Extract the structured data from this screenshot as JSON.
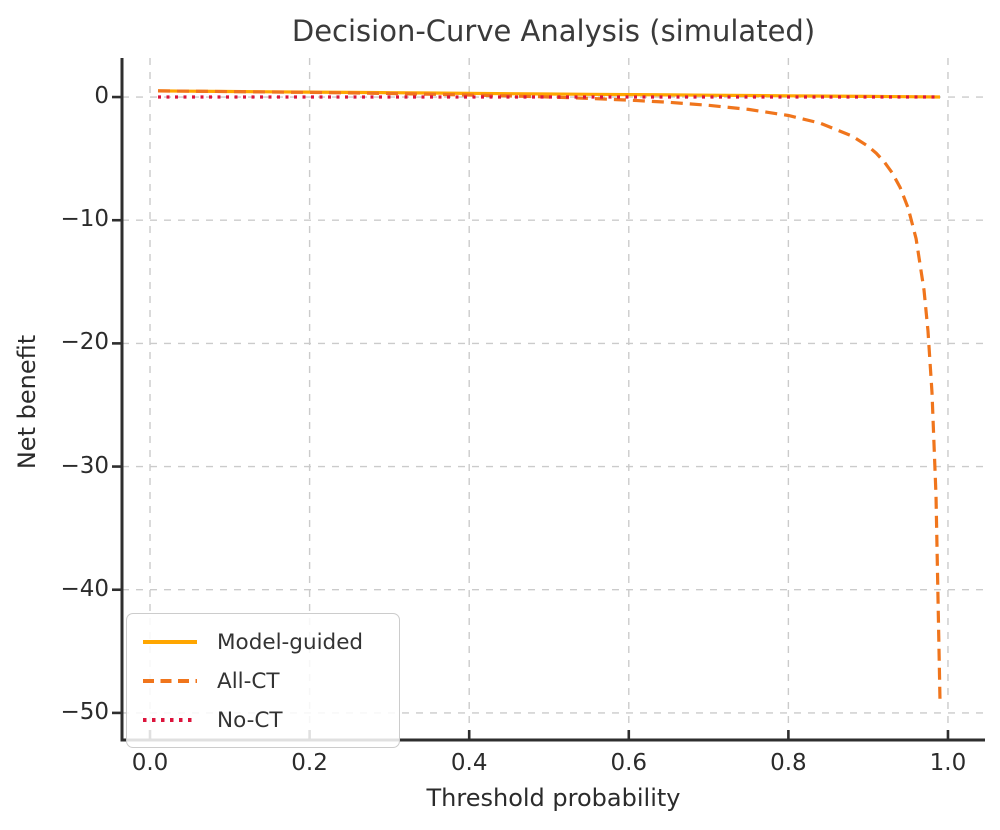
{
  "chart_data": {
    "type": "line",
    "title": "Decision-Curve Analysis (simulated)",
    "xlabel": "Threshold probability",
    "ylabel": "Net benefit",
    "xlim": [
      -0.0351,
      1.0464
    ],
    "ylim": [
      -52.2,
      3.17
    ],
    "xticks": [
      0.0,
      0.2,
      0.4,
      0.6,
      0.8,
      1.0
    ],
    "xtick_labels": [
      "0.0",
      "0.2",
      "0.4",
      "0.6",
      "0.8",
      "1.0"
    ],
    "yticks": [
      0,
      -10,
      -20,
      -30,
      -40,
      -50
    ],
    "ytick_labels": [
      "0",
      "−10",
      "−20",
      "−30",
      "−40",
      "−50"
    ],
    "grid": true,
    "grid_color": "#cbcbcb",
    "legend_position": "lower left",
    "series": [
      {
        "name": "Model-guided",
        "color": "#FFA600",
        "style": "solid",
        "x": [
          0.01,
          0.05,
          0.1,
          0.15,
          0.2,
          0.25,
          0.3,
          0.35,
          0.4,
          0.45,
          0.5,
          0.55,
          0.6,
          0.65,
          0.7,
          0.75,
          0.8,
          0.85,
          0.9,
          0.95,
          0.99
        ],
        "y": [
          0.495,
          0.475,
          0.45,
          0.425,
          0.4,
          0.375,
          0.35,
          0.325,
          0.3,
          0.275,
          0.25,
          0.225,
          0.2,
          0.175,
          0.15,
          0.125,
          0.1,
          0.075,
          0.05,
          0.025,
          0.005
        ]
      },
      {
        "name": "All-CT",
        "color": "#F0751C",
        "style": "dashed",
        "x": [
          0.01,
          0.05,
          0.1,
          0.15,
          0.2,
          0.25,
          0.3,
          0.35,
          0.4,
          0.45,
          0.5,
          0.55,
          0.6,
          0.65,
          0.7,
          0.75,
          0.8,
          0.84,
          0.88,
          0.9,
          0.91,
          0.92,
          0.93,
          0.94,
          0.95,
          0.96,
          0.97,
          0.975,
          0.98,
          0.985,
          0.99
        ],
        "y": [
          0.495,
          0.474,
          0.444,
          0.412,
          0.375,
          0.333,
          0.286,
          0.231,
          0.167,
          0.091,
          0.0,
          -0.111,
          -0.25,
          -0.429,
          -0.667,
          -1.0,
          -1.5,
          -2.125,
          -3.167,
          -4.0,
          -4.556,
          -5.25,
          -6.143,
          -7.333,
          -9.0,
          -11.5,
          -15.667,
          -19.0,
          -24.0,
          -32.333,
          -49.0
        ]
      },
      {
        "name": "No-CT",
        "color": "#DC143C",
        "style": "dotted",
        "x": [
          0.01,
          0.25,
          0.5,
          0.75,
          0.99
        ],
        "y": [
          0.0,
          0.0,
          0.0,
          0.0,
          0.0
        ]
      }
    ]
  }
}
